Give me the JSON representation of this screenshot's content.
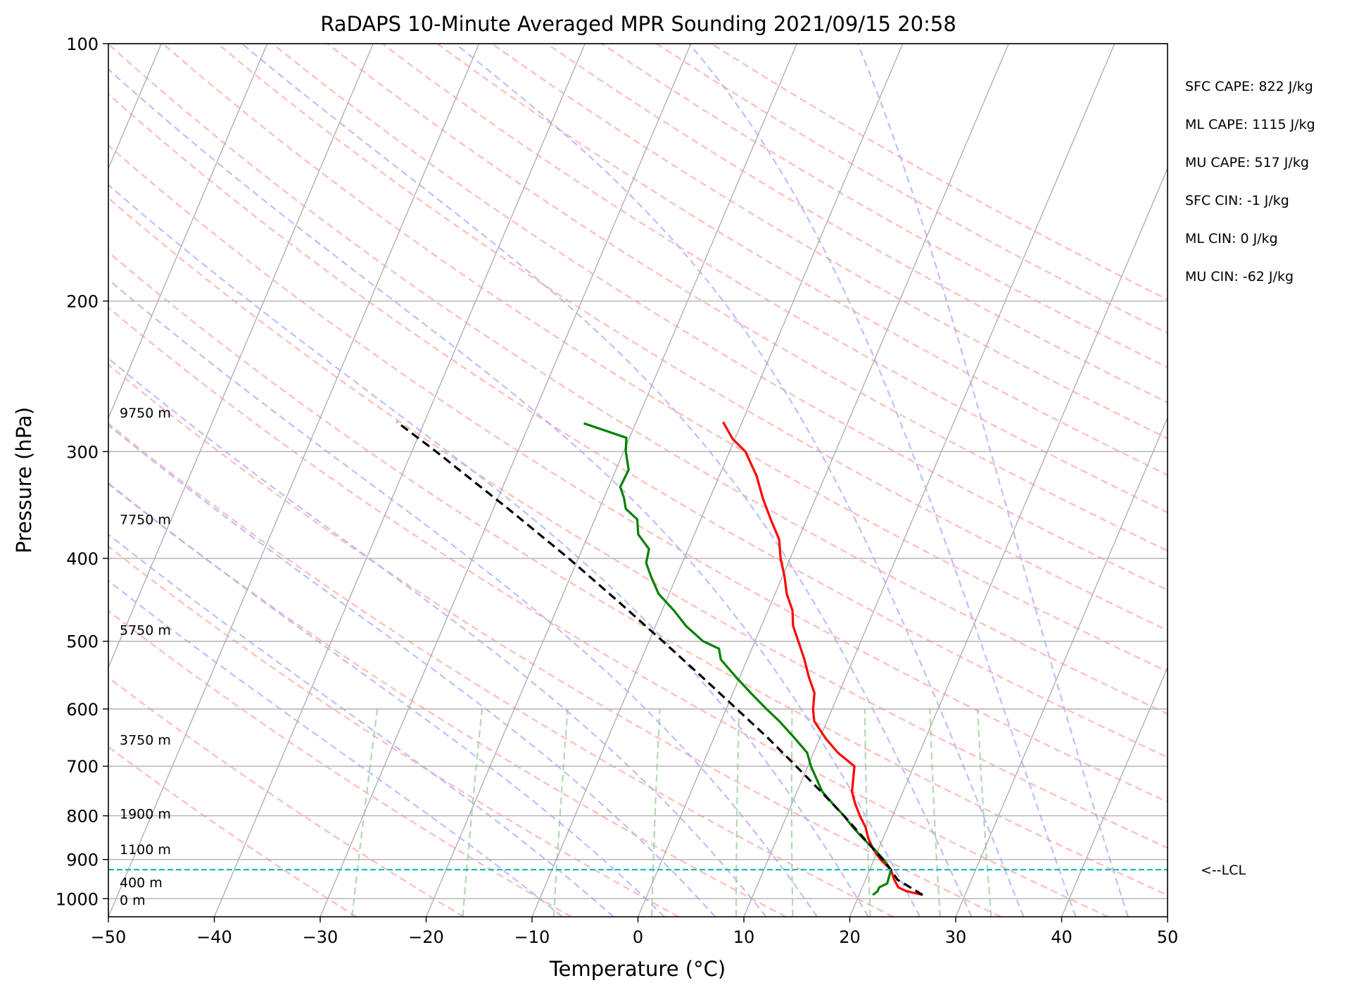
{
  "chart_data": {
    "type": "line",
    "title": "RaDAPS 10-Minute Averaged MPR Sounding 2021/09/15 20:58",
    "xlabel": "Temperature (°C)",
    "ylabel": "Pressure (hPa)",
    "xlim": [
      -50,
      50
    ],
    "ylim": [
      1050,
      100
    ],
    "y_scale": "log",
    "grid": true,
    "x_ticks": [
      -50,
      -40,
      -30,
      -20,
      -10,
      0,
      10,
      20,
      30,
      40,
      50
    ],
    "x_tick_labels": [
      "−50",
      "−40",
      "−30",
      "−20",
      "−10",
      "0",
      "10",
      "20",
      "30",
      "40",
      "50"
    ],
    "y_ticks": [
      100,
      200,
      300,
      400,
      500,
      600,
      700,
      800,
      900,
      1000
    ],
    "y_tick_labels": [
      "100",
      "200",
      "300",
      "400",
      "500",
      "600",
      "700",
      "800",
      "900",
      "1000"
    ],
    "series": [
      {
        "role": "temperature",
        "color": "#ff0000",
        "points": [
          [
            990,
            26.0
          ],
          [
            980,
            24.3
          ],
          [
            970,
            23.4
          ],
          [
            950,
            22.7
          ],
          [
            925,
            22.0
          ],
          [
            900,
            20.6
          ],
          [
            875,
            19.5
          ],
          [
            850,
            18.6
          ],
          [
            825,
            17.9
          ],
          [
            800,
            16.9
          ],
          [
            775,
            16.0
          ],
          [
            750,
            15.2
          ],
          [
            700,
            14.4
          ],
          [
            675,
            12.3
          ],
          [
            650,
            10.6
          ],
          [
            620,
            8.8
          ],
          [
            600,
            8.2
          ],
          [
            575,
            7.7
          ],
          [
            550,
            6.5
          ],
          [
            525,
            5.4
          ],
          [
            500,
            4.1
          ],
          [
            480,
            3.0
          ],
          [
            460,
            2.3
          ],
          [
            440,
            1.1
          ],
          [
            420,
            0.2
          ],
          [
            400,
            -0.9
          ],
          [
            380,
            -1.8
          ],
          [
            360,
            -3.4
          ],
          [
            340,
            -5.0
          ],
          [
            320,
            -6.5
          ],
          [
            300,
            -8.5
          ],
          [
            290,
            -10.2
          ],
          [
            277,
            -11.8
          ]
        ]
      },
      {
        "role": "dewpoint",
        "color": "#008000",
        "points": [
          [
            990,
            21.3
          ],
          [
            980,
            21.6
          ],
          [
            970,
            21.6
          ],
          [
            960,
            22.2
          ],
          [
            925,
            22.0
          ],
          [
            900,
            20.9
          ],
          [
            875,
            19.6
          ],
          [
            850,
            18.1
          ],
          [
            825,
            16.7
          ],
          [
            800,
            15.4
          ],
          [
            775,
            13.9
          ],
          [
            750,
            12.4
          ],
          [
            700,
            10.3
          ],
          [
            675,
            9.4
          ],
          [
            650,
            7.7
          ],
          [
            620,
            5.5
          ],
          [
            600,
            3.8
          ],
          [
            575,
            1.7
          ],
          [
            550,
            -0.4
          ],
          [
            525,
            -2.5
          ],
          [
            510,
            -3.1
          ],
          [
            500,
            -4.9
          ],
          [
            480,
            -7.1
          ],
          [
            460,
            -8.9
          ],
          [
            440,
            -11.0
          ],
          [
            420,
            -12.4
          ],
          [
            405,
            -13.4
          ],
          [
            390,
            -13.7
          ],
          [
            375,
            -15.3
          ],
          [
            360,
            -16.0
          ],
          [
            350,
            -17.5
          ],
          [
            340,
            -18.1
          ],
          [
            330,
            -18.9
          ],
          [
            315,
            -18.8
          ],
          [
            300,
            -19.8
          ],
          [
            289,
            -20.3
          ],
          [
            278,
            -24.9
          ]
        ]
      },
      {
        "role": "parcel",
        "color": "#000000",
        "dashed": true,
        "points": [
          [
            990,
            26.0
          ],
          [
            950,
            23.0
          ],
          [
            925,
            22.0
          ],
          [
            900,
            20.8
          ],
          [
            850,
            18.2
          ],
          [
            800,
            15.4
          ],
          [
            750,
            12.3
          ],
          [
            700,
            8.9
          ],
          [
            650,
            5.2
          ],
          [
            600,
            1.0
          ],
          [
            550,
            -3.6
          ],
          [
            500,
            -8.7
          ],
          [
            450,
            -14.4
          ],
          [
            400,
            -20.9
          ],
          [
            350,
            -28.6
          ],
          [
            300,
            -37.7
          ],
          [
            277,
            -42.6
          ]
        ]
      }
    ],
    "lcl_pressure": 925,
    "lcl_label": "<--LCL",
    "height_labels": [
      {
        "text": "9750 m",
        "p": 270
      },
      {
        "text": "7750 m",
        "p": 360
      },
      {
        "text": "5750 m",
        "p": 485
      },
      {
        "text": "3750 m",
        "p": 652
      },
      {
        "text": "1900 m",
        "p": 795
      },
      {
        "text": "1100 m",
        "p": 875
      },
      {
        "text": "400 m",
        "p": 957
      },
      {
        "text": "0 m",
        "p": 1003
      }
    ],
    "stats": [
      "SFC CAPE: 822 J/kg",
      "ML CAPE: 1115 J/kg",
      "MU CAPE: 517 J/kg",
      "SFC CIN: -1 J/kg",
      "ML CIN: 0 J/kg",
      "MU CIN: -62 J/kg"
    ],
    "colors": {
      "isotherm": "#b0b0b0",
      "isobar": "#b0b0b0",
      "dry_adiabat": "#ff9e9e",
      "moist_adiabat": "#a8a8ff",
      "mixing_ratio": "#9fd09f",
      "lcl_line": "#17bebb"
    }
  }
}
